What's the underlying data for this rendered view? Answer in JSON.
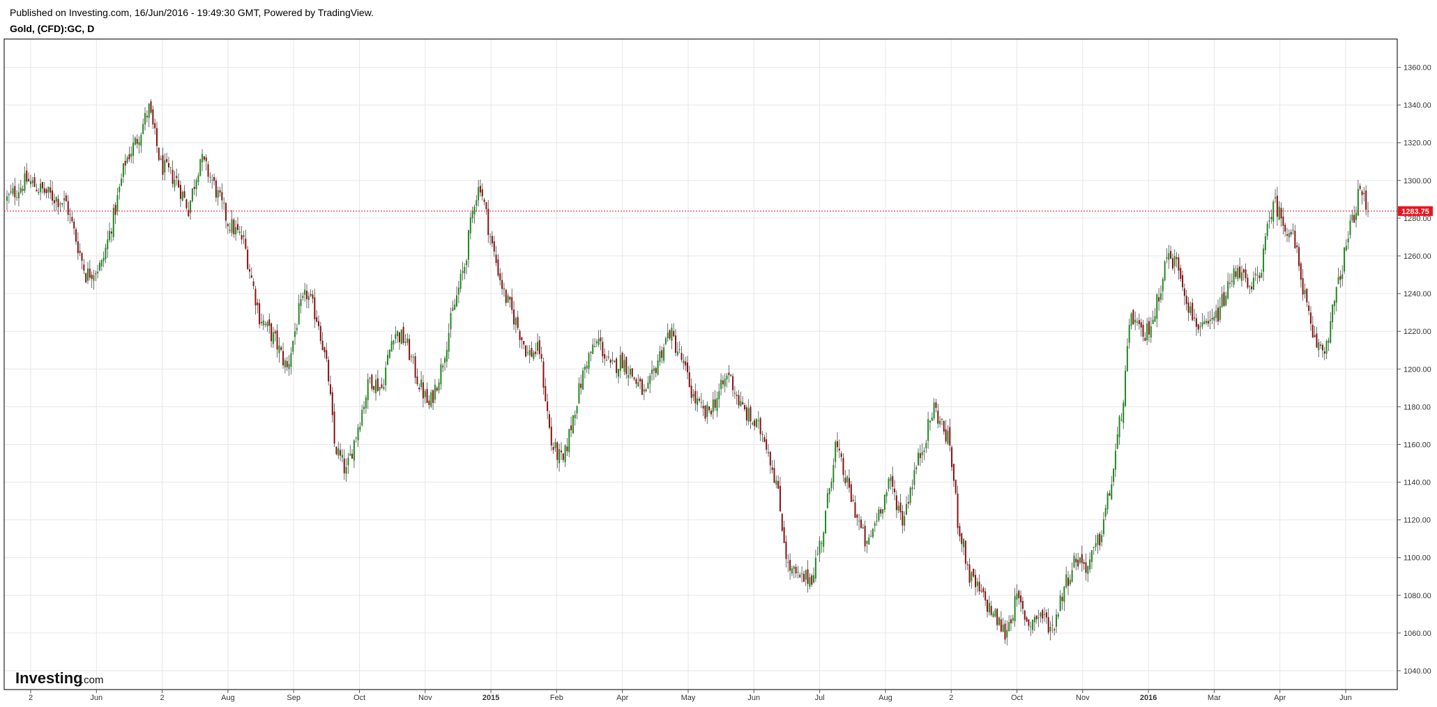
{
  "header": {
    "published": "Published on Investing.com, 16/Jun/2016 - 19:49:30 GMT, Powered by TradingView.",
    "symbol": "Gold, (CFD):GC, D"
  },
  "branding": {
    "logo_word": "Investing",
    "logo_suffix": ".com"
  },
  "colors": {
    "up": "#1d8a1d",
    "down": "#8b0f0f",
    "wick": "#444444",
    "current_price_line": "#e8141e",
    "grid": "#e6e6e6",
    "axis": "#555555"
  },
  "chart_data": {
    "type": "candlestick",
    "title": "Gold, (CFD):GC, D",
    "ylim": [
      1030,
      1375
    ],
    "y_ticks": [
      1040,
      1060,
      1080,
      1100,
      1120,
      1140,
      1160,
      1180,
      1200,
      1220,
      1240,
      1260,
      1280,
      1300,
      1320,
      1340,
      1360
    ],
    "x_tick_labels": [
      "2",
      "Jun",
      "2",
      "Aug",
      "Sep",
      "Oct",
      "Nov",
      "2015",
      "Feb",
      "Apr",
      "May",
      "Jun",
      "Jul",
      "Aug",
      "2",
      "Oct",
      "Nov",
      "2016",
      "Mar",
      "Apr",
      "Jun"
    ],
    "current_price": 1283.75,
    "current_price_label": "1283.75",
    "grid": true,
    "approximate_close_path": [
      {
        "t": 0,
        "v": 1290
      },
      {
        "t": 10,
        "v": 1300
      },
      {
        "t": 22,
        "v": 1292
      },
      {
        "t": 30,
        "v": 1288
      },
      {
        "t": 40,
        "v": 1250
      },
      {
        "t": 48,
        "v": 1255
      },
      {
        "t": 55,
        "v": 1285
      },
      {
        "t": 60,
        "v": 1310
      },
      {
        "t": 66,
        "v": 1322
      },
      {
        "t": 72,
        "v": 1338
      },
      {
        "t": 78,
        "v": 1308
      },
      {
        "t": 86,
        "v": 1300
      },
      {
        "t": 92,
        "v": 1285
      },
      {
        "t": 98,
        "v": 1312
      },
      {
        "t": 104,
        "v": 1300
      },
      {
        "t": 112,
        "v": 1278
      },
      {
        "t": 120,
        "v": 1268
      },
      {
        "t": 128,
        "v": 1228
      },
      {
        "t": 136,
        "v": 1215
      },
      {
        "t": 142,
        "v": 1200
      },
      {
        "t": 148,
        "v": 1230
      },
      {
        "t": 152,
        "v": 1240
      },
      {
        "t": 158,
        "v": 1225
      },
      {
        "t": 163,
        "v": 1195
      },
      {
        "t": 166,
        "v": 1160
      },
      {
        "t": 172,
        "v": 1145
      },
      {
        "t": 178,
        "v": 1170
      },
      {
        "t": 184,
        "v": 1195
      },
      {
        "t": 190,
        "v": 1190
      },
      {
        "t": 196,
        "v": 1220
      },
      {
        "t": 202,
        "v": 1215
      },
      {
        "t": 208,
        "v": 1195
      },
      {
        "t": 214,
        "v": 1180
      },
      {
        "t": 220,
        "v": 1200
      },
      {
        "t": 226,
        "v": 1230
      },
      {
        "t": 232,
        "v": 1255
      },
      {
        "t": 237,
        "v": 1290
      },
      {
        "t": 240,
        "v": 1298
      },
      {
        "t": 246,
        "v": 1265
      },
      {
        "t": 252,
        "v": 1240
      },
      {
        "t": 258,
        "v": 1225
      },
      {
        "t": 264,
        "v": 1208
      },
      {
        "t": 270,
        "v": 1210
      },
      {
        "t": 276,
        "v": 1160
      },
      {
        "t": 282,
        "v": 1150
      },
      {
        "t": 288,
        "v": 1180
      },
      {
        "t": 294,
        "v": 1205
      },
      {
        "t": 300,
        "v": 1215
      },
      {
        "t": 306,
        "v": 1200
      },
      {
        "t": 312,
        "v": 1205
      },
      {
        "t": 318,
        "v": 1195
      },
      {
        "t": 324,
        "v": 1185
      },
      {
        "t": 330,
        "v": 1205
      },
      {
        "t": 336,
        "v": 1220
      },
      {
        "t": 342,
        "v": 1205
      },
      {
        "t": 348,
        "v": 1185
      },
      {
        "t": 354,
        "v": 1175
      },
      {
        "t": 360,
        "v": 1185
      },
      {
        "t": 366,
        "v": 1198
      },
      {
        "t": 372,
        "v": 1180
      },
      {
        "t": 378,
        "v": 1172
      },
      {
        "t": 384,
        "v": 1165
      },
      {
        "t": 390,
        "v": 1140
      },
      {
        "t": 396,
        "v": 1095
      },
      {
        "t": 402,
        "v": 1088
      },
      {
        "t": 408,
        "v": 1090
      },
      {
        "t": 414,
        "v": 1115
      },
      {
        "t": 420,
        "v": 1160
      },
      {
        "t": 424,
        "v": 1145
      },
      {
        "t": 430,
        "v": 1125
      },
      {
        "t": 436,
        "v": 1105
      },
      {
        "t": 442,
        "v": 1125
      },
      {
        "t": 448,
        "v": 1140
      },
      {
        "t": 454,
        "v": 1120
      },
      {
        "t": 460,
        "v": 1145
      },
      {
        "t": 466,
        "v": 1165
      },
      {
        "t": 470,
        "v": 1180
      },
      {
        "t": 474,
        "v": 1170
      },
      {
        "t": 478,
        "v": 1160
      },
      {
        "t": 482,
        "v": 1120
      },
      {
        "t": 488,
        "v": 1090
      },
      {
        "t": 494,
        "v": 1080
      },
      {
        "t": 500,
        "v": 1070
      },
      {
        "t": 506,
        "v": 1060
      },
      {
        "t": 512,
        "v": 1078
      },
      {
        "t": 518,
        "v": 1065
      },
      {
        "t": 524,
        "v": 1070
      },
      {
        "t": 530,
        "v": 1062
      },
      {
        "t": 536,
        "v": 1085
      },
      {
        "t": 542,
        "v": 1100
      },
      {
        "t": 548,
        "v": 1095
      },
      {
        "t": 554,
        "v": 1110
      },
      {
        "t": 560,
        "v": 1140
      },
      {
        "t": 566,
        "v": 1185
      },
      {
        "t": 570,
        "v": 1230
      },
      {
        "t": 576,
        "v": 1215
      },
      {
        "t": 582,
        "v": 1230
      },
      {
        "t": 588,
        "v": 1260
      },
      {
        "t": 594,
        "v": 1255
      },
      {
        "t": 600,
        "v": 1230
      },
      {
        "t": 606,
        "v": 1220
      },
      {
        "t": 612,
        "v": 1225
      },
      {
        "t": 618,
        "v": 1240
      },
      {
        "t": 624,
        "v": 1255
      },
      {
        "t": 630,
        "v": 1240
      },
      {
        "t": 636,
        "v": 1255
      },
      {
        "t": 642,
        "v": 1290
      },
      {
        "t": 646,
        "v": 1280
      },
      {
        "t": 652,
        "v": 1270
      },
      {
        "t": 656,
        "v": 1250
      },
      {
        "t": 662,
        "v": 1215
      },
      {
        "t": 668,
        "v": 1210
      },
      {
        "t": 674,
        "v": 1240
      },
      {
        "t": 680,
        "v": 1270
      },
      {
        "t": 686,
        "v": 1295
      },
      {
        "t": 690,
        "v": 1283.75
      }
    ]
  }
}
